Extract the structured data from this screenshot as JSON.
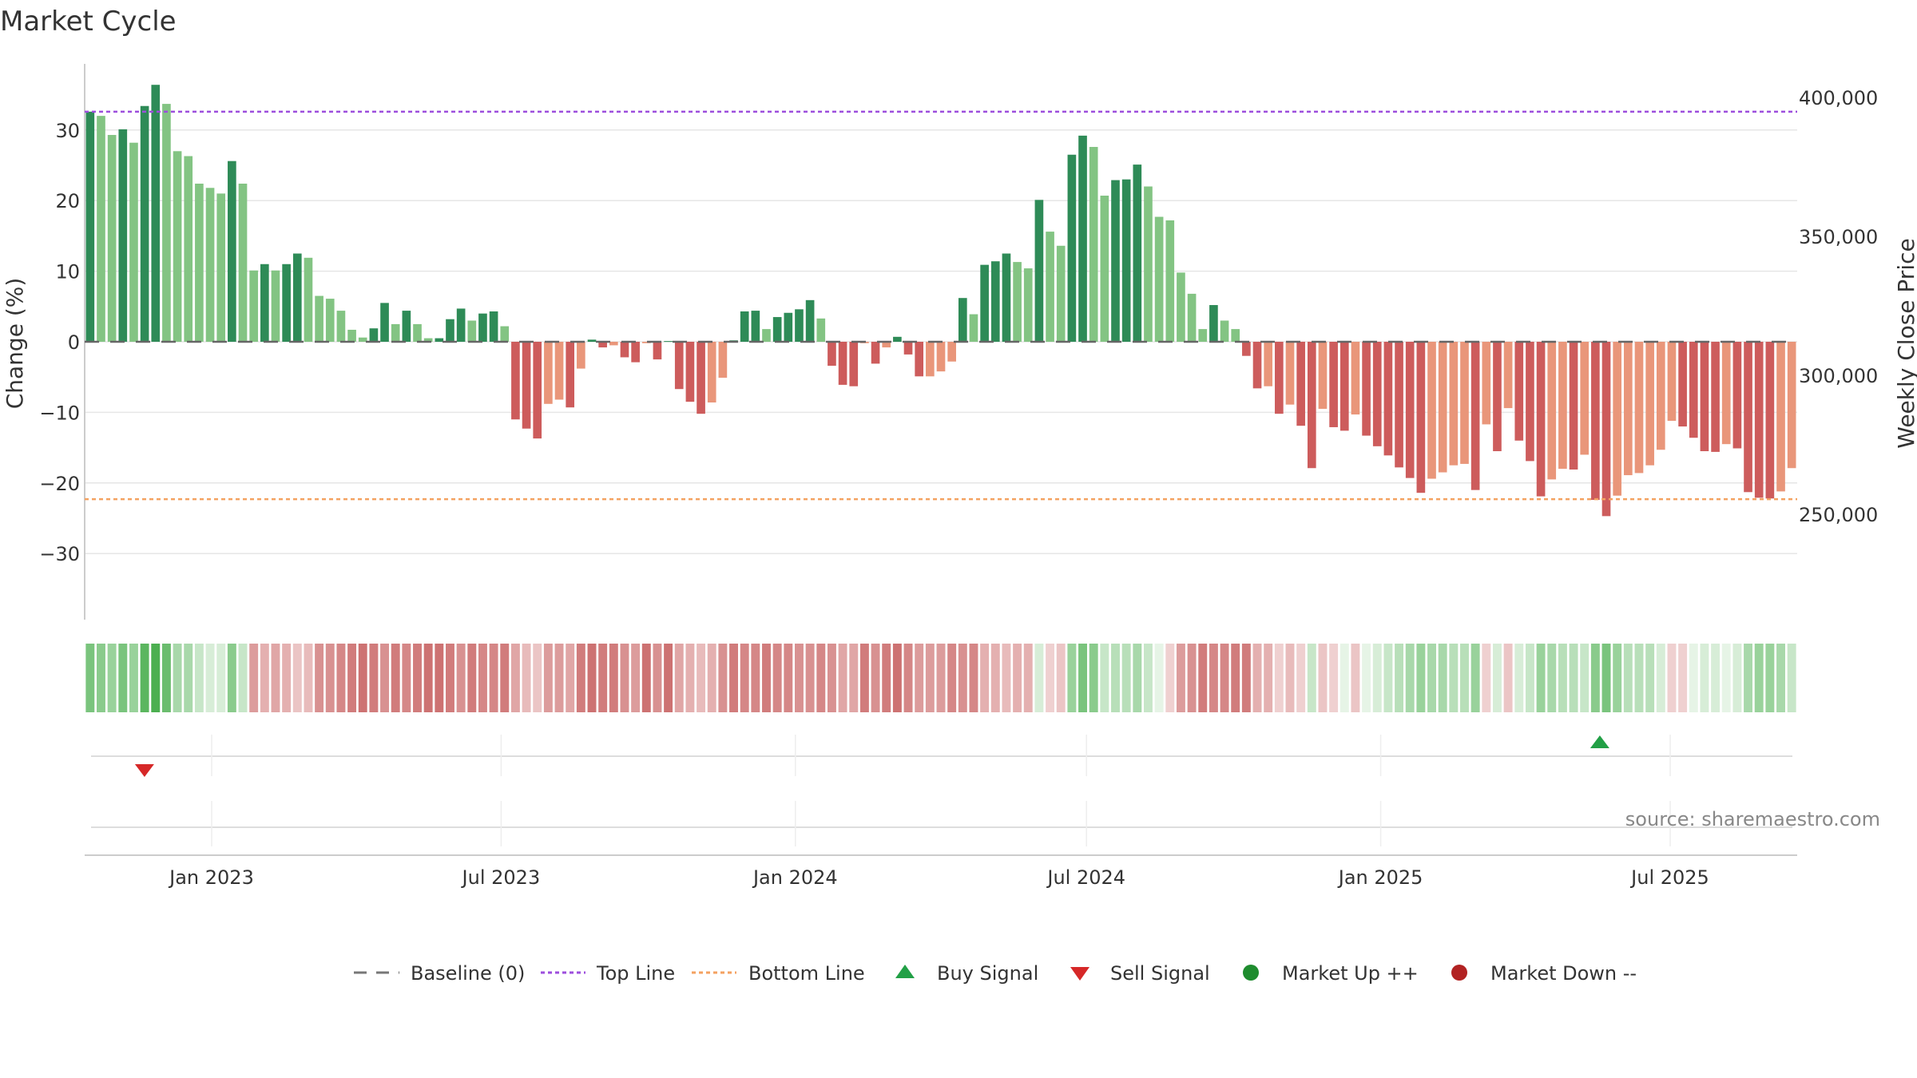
{
  "chart_data": {
    "type": "bar",
    "title": "Market Cycle",
    "ylabel_left": "Change (%)",
    "ylabel_right": "Weekly Close Price",
    "source": "source: sharemaestro.com",
    "left_axis": {
      "ylim": [
        -39.7,
        39.2
      ],
      "ticks": [
        30,
        20,
        10,
        0,
        -10,
        -20,
        -30
      ],
      "tick_labels": [
        "30",
        "20",
        "10",
        "0",
        "−10",
        "−20",
        "−30"
      ]
    },
    "right_axis": {
      "ticks": [
        400000,
        350000,
        300000,
        250000
      ],
      "tick_labels": [
        "400,000",
        "350,000",
        "300,000",
        "250,000"
      ]
    },
    "x_axis": {
      "start": "2022-10-17",
      "end": "2025-09-15",
      "tick_labels": [
        "Jan 2023",
        "Jul 2023",
        "Jan 2024",
        "Jul 2024",
        "Jan 2025",
        "Jul 2025"
      ],
      "tick_dates": [
        "2023-01-01",
        "2023-07-01",
        "2024-01-01",
        "2024-07-01",
        "2025-01-01",
        "2025-07-01"
      ]
    },
    "top_line": 32.6,
    "bottom_line": -22.3,
    "colors": {
      "up_strong": "#2e8b57",
      "up_weak": "#83c483",
      "down_strong": "#cd5c5c",
      "down_weak": "#e9967a",
      "top_line": "#9d4edd",
      "bottom_line": "#f4a261",
      "buy": "#22a046",
      "sell": "#d62828",
      "market_up": "#1e8c2e",
      "market_down": "#b22222"
    },
    "series": [
      {
        "name": "Change (%)",
        "values": [
          32.6,
          32.0,
          29.3,
          30.1,
          28.2,
          33.4,
          36.4,
          33.7,
          27.0,
          26.3,
          22.4,
          21.8,
          21.0,
          25.6,
          22.4,
          10.1,
          11.0,
          10.1,
          11.0,
          12.5,
          11.9,
          6.5,
          6.1,
          4.4,
          1.7,
          0.6,
          1.9,
          5.5,
          2.5,
          4.4,
          2.5,
          0.5,
          0.5,
          3.2,
          4.7,
          3.0,
          4.0,
          4.3,
          2.2,
          -11.0,
          -12.3,
          -13.7,
          -8.8,
          -8.2,
          -9.3,
          -3.8,
          0.3,
          -0.8,
          -0.5,
          -2.2,
          -2.9,
          -0.2,
          -2.5,
          0.1,
          -6.7,
          -8.5,
          -10.2,
          -8.6,
          -5.1,
          0.2,
          4.3,
          4.4,
          1.8,
          3.5,
          4.1,
          4.6,
          5.9,
          3.3,
          -3.4,
          -6.1,
          -6.3,
          -0.2,
          -3.1,
          -0.8,
          0.7,
          -1.8,
          -4.9,
          -4.9,
          -4.2,
          -2.8,
          6.2,
          3.9,
          10.9,
          11.4,
          12.5,
          11.3,
          10.4,
          20.1,
          15.6,
          13.6,
          26.5,
          29.2,
          27.6,
          20.7,
          22.9,
          23.0,
          25.1,
          22.0,
          17.7,
          17.2,
          9.8,
          6.8,
          1.8,
          5.2,
          3.0,
          1.8,
          -2.0,
          -6.6,
          -6.3,
          -10.2,
          -8.9,
          -11.9,
          -17.9,
          -9.5,
          -12.1,
          -12.6,
          -10.3,
          -13.3,
          -14.8,
          -16.1,
          -17.8,
          -19.3,
          -21.4,
          -19.4,
          -18.5,
          -17.5,
          -17.3,
          -21.0,
          -11.7,
          -15.5,
          -9.4,
          -14.0,
          -16.9,
          -21.9,
          -19.5,
          -18.0,
          -18.1,
          -16.0,
          -22.4,
          -24.7,
          -21.8,
          -18.9,
          -18.6,
          -17.5,
          -15.3,
          -11.2,
          -12.0,
          -13.6,
          -15.5,
          -15.6,
          -14.5,
          -15.1,
          -21.3,
          -22.1,
          -22.2,
          -21.2,
          -17.9
        ]
      },
      {
        "name": "Weekly Close Price",
        "values": [
          0.7,
          0.6,
          0.5,
          0.7,
          0.5,
          0.9,
          1.0,
          0.8,
          0.4,
          0.4,
          0.2,
          0.1,
          0.1,
          0.6,
          0.2,
          -0.6,
          -0.4,
          -0.5,
          -0.4,
          -0.2,
          -0.3,
          -0.7,
          -0.7,
          -0.8,
          -0.9,
          -1.0,
          -0.9,
          -0.7,
          -0.9,
          -0.8,
          -0.9,
          -1.0,
          -1.0,
          -0.9,
          -0.7,
          -0.9,
          -0.8,
          -0.8,
          -0.9,
          -0.5,
          -0.3,
          -0.2,
          -0.6,
          -0.6,
          -0.5,
          -0.9,
          -1.0,
          -0.9,
          -0.9,
          -0.7,
          -0.6,
          -1.0,
          -0.7,
          -1.0,
          -0.5,
          -0.4,
          -0.3,
          -0.4,
          -0.7,
          -0.9,
          -0.8,
          -0.8,
          -0.9,
          -0.8,
          -0.8,
          -0.7,
          -0.7,
          -0.8,
          -0.7,
          -0.5,
          -0.5,
          -0.9,
          -0.7,
          -0.9,
          -1.0,
          -0.8,
          -0.6,
          -0.6,
          -0.6,
          -0.8,
          -0.7,
          -0.8,
          -0.4,
          -0.4,
          -0.3,
          -0.4,
          -0.4,
          0.1,
          -0.1,
          -0.2,
          0.5,
          0.7,
          0.6,
          0.2,
          0.3,
          0.3,
          0.4,
          0.2,
          0.0,
          -0.1,
          -0.6,
          -0.7,
          -0.9,
          -0.8,
          -0.8,
          -0.9,
          -0.9,
          -0.4,
          -0.4,
          -0.1,
          -0.3,
          -0.1,
          0.2,
          -0.2,
          -0.1,
          0.0,
          -0.2,
          0.0,
          0.1,
          0.2,
          0.3,
          0.4,
          0.5,
          0.4,
          0.4,
          0.3,
          0.3,
          0.5,
          -0.1,
          0.1,
          -0.2,
          0.1,
          0.2,
          0.5,
          0.4,
          0.3,
          0.3,
          0.2,
          0.6,
          0.7,
          0.5,
          0.3,
          0.3,
          0.3,
          0.1,
          -0.1,
          -0.1,
          0.0,
          0.1,
          0.1,
          0.0,
          0.1,
          0.4,
          0.5,
          0.5,
          0.4,
          0.2
        ]
      }
    ],
    "sell_signals": [
      "2022-11-20"
    ],
    "buy_signals": [
      "2025-05-18"
    ],
    "legend": [
      "Baseline (0)",
      "Top Line",
      "Bottom Line",
      "Buy Signal",
      "Sell Signal",
      "Market Up ++",
      "Market Down --"
    ],
    "legend_placement": "bottom-center"
  }
}
